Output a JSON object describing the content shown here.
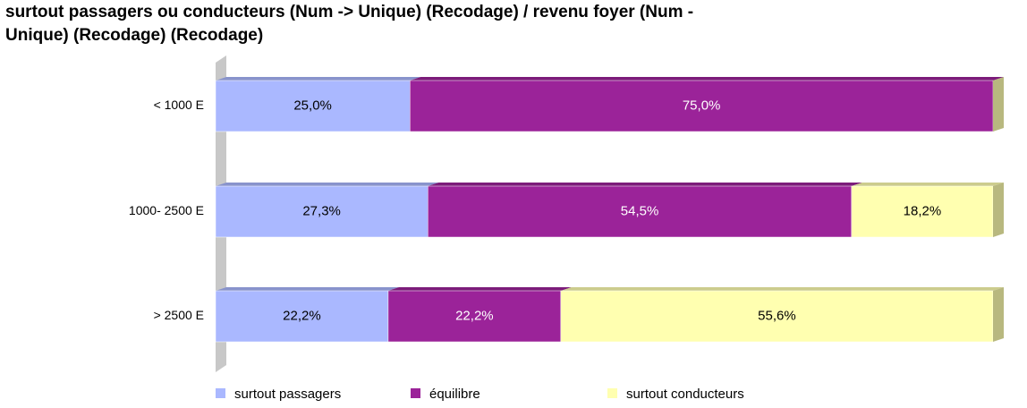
{
  "chart_data": {
    "type": "stacked-bar-3d",
    "title": [
      "surtout passagers ou conducteurs (Num -> Unique) (Recodage) / revenu foyer (Num -",
      "Unique) (Recodage) (Recodage)"
    ],
    "categories": [
      "< 1000 E",
      "1000- 2500 E",
      "> 2500 E"
    ],
    "series": [
      {
        "name": "surtout passagers",
        "color": "#aab8ff",
        "values": [
          25.0,
          27.3,
          22.2
        ],
        "value_labels": [
          "25,0%",
          "27,3%",
          "22,2%"
        ]
      },
      {
        "name": "équilibre",
        "color": "#9b2399",
        "values": [
          75.0,
          54.5,
          22.2
        ],
        "value_labels": [
          "75,0%",
          "54,5%",
          "22,2%"
        ]
      },
      {
        "name": "surtout conducteurs",
        "color": "#ffffb0",
        "values": [
          0,
          18.2,
          55.6
        ],
        "value_labels": [
          null,
          "18,2%",
          "55,6%"
        ]
      }
    ]
  }
}
